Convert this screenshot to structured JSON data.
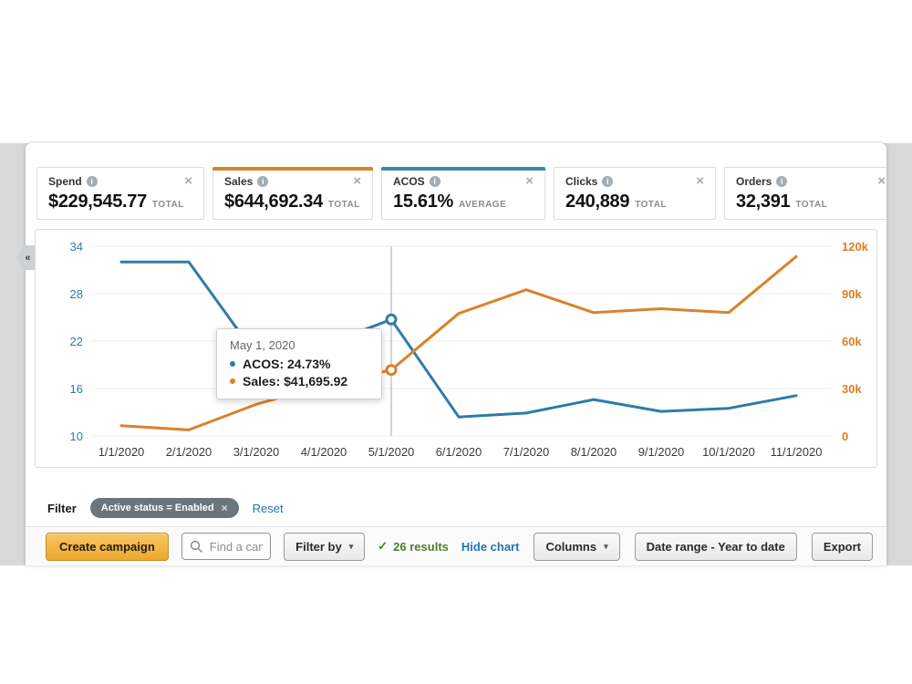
{
  "glyphs": {
    "close": "×",
    "info": "i",
    "chevron_down": "▾",
    "check": "✓",
    "collapse": "«"
  },
  "colors": {
    "acos_blue": "#2e7ca8",
    "sales_orange": "#d9822c",
    "right_axis_orange": "#e07d1e",
    "primary_button": "#eda72f",
    "link": "#2374ab",
    "results_green": "#4c7d2c",
    "chip_gray": "#69767e"
  },
  "metric_cards": [
    {
      "label": "Spend",
      "value": "$229,545.77",
      "unit": "TOTAL",
      "accent": null
    },
    {
      "label": "Sales",
      "value": "$644,692.34",
      "unit": "TOTAL",
      "accent": "#d9822c"
    },
    {
      "label": "ACOS",
      "value": "15.61%",
      "unit": "AVERAGE",
      "accent": "#3a87ad"
    },
    {
      "label": "Clicks",
      "value": "240,889",
      "unit": "TOTAL",
      "accent": null
    },
    {
      "label": "Orders",
      "value": "32,391",
      "unit": "TOTAL",
      "accent": null
    }
  ],
  "chart_data": {
    "type": "line",
    "x": [
      "1/1/2020",
      "2/1/2020",
      "3/1/2020",
      "4/1/2020",
      "5/1/2020",
      "6/1/2020",
      "7/1/2020",
      "8/1/2020",
      "9/1/2020",
      "10/1/2020",
      "11/1/2020"
    ],
    "series": [
      {
        "name": "ACOS",
        "axis": "left",
        "color": "#2e7ca8",
        "values": [
          32,
          32,
          20.2,
          21.5,
          24.73,
          12.4,
          12.9,
          14.6,
          13.1,
          13.5,
          15.1
        ]
      },
      {
        "name": "Sales",
        "axis": "right",
        "color": "#d9822c",
        "values": [
          6500,
          3800,
          20000,
          32000,
          41695.92,
          77500,
          92500,
          78000,
          80500,
          78000,
          113500
        ]
      }
    ],
    "left_axis": {
      "ticks": [
        "34",
        "28",
        "22",
        "16",
        "10"
      ],
      "min": 10,
      "max": 34,
      "color": "#2e7ca8"
    },
    "right_axis": {
      "ticks": [
        "120k",
        "90k",
        "60k",
        "30k",
        "0"
      ],
      "min": 0,
      "max": 120000,
      "color": "#e07d1e"
    },
    "grid": true,
    "highlight_index": 4,
    "tooltip": {
      "date": "May 1, 2020",
      "rows": [
        {
          "text": "ACOS: 24.73%",
          "color": "#2e7ca8"
        },
        {
          "text": "Sales: $41,695.92",
          "color": "#d9822c"
        }
      ]
    }
  },
  "filter_bar": {
    "label": "Filter",
    "chip": "Active status = Enabled",
    "reset": "Reset"
  },
  "toolbar": {
    "create": "Create campaign",
    "search_placeholder": "Find a campaign",
    "filter_by": "Filter by",
    "results": "26 results",
    "hide_chart": "Hide chart",
    "columns": "Columns",
    "date_range": "Date range - Year to date",
    "export": "Export"
  }
}
